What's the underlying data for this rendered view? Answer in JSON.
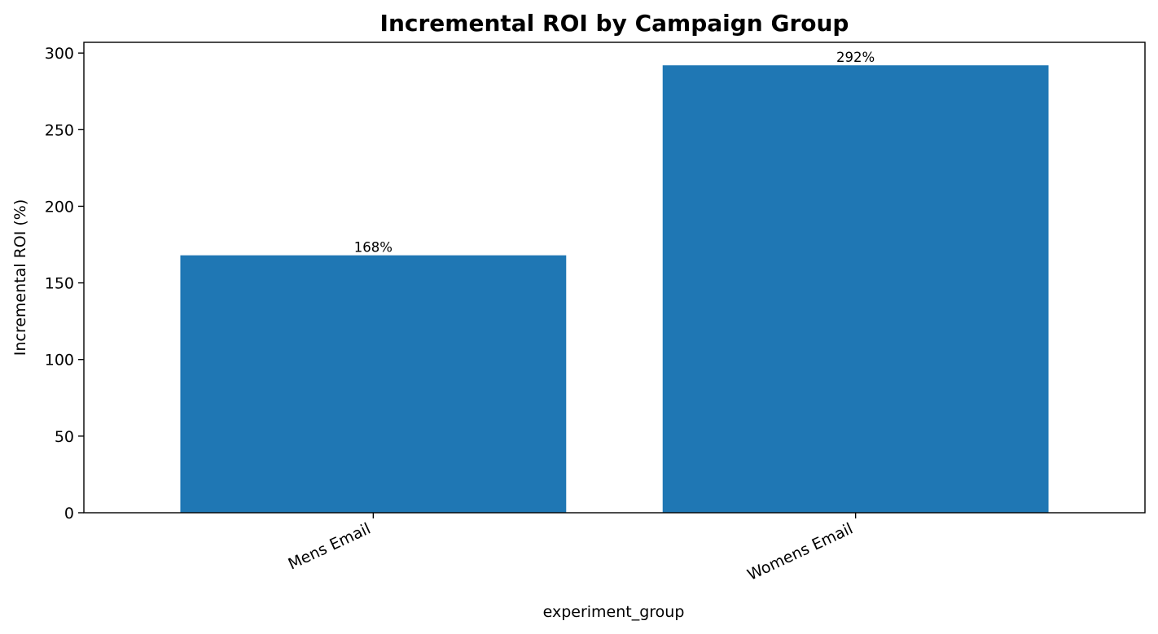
{
  "chart_data": {
    "type": "bar",
    "title": "Incremental ROI by Campaign Group",
    "xlabel": "experiment_group",
    "ylabel": "Incremental ROI (%)",
    "categories": [
      "Mens Email",
      "Womens Email"
    ],
    "values": [
      168,
      292
    ],
    "data_labels": [
      "168%",
      "292%"
    ],
    "ylim": [
      0,
      307
    ],
    "yticks": [
      0,
      50,
      100,
      150,
      200,
      250,
      300
    ],
    "bar_color": "#1f77b4",
    "grid": false,
    "legend": "none"
  }
}
